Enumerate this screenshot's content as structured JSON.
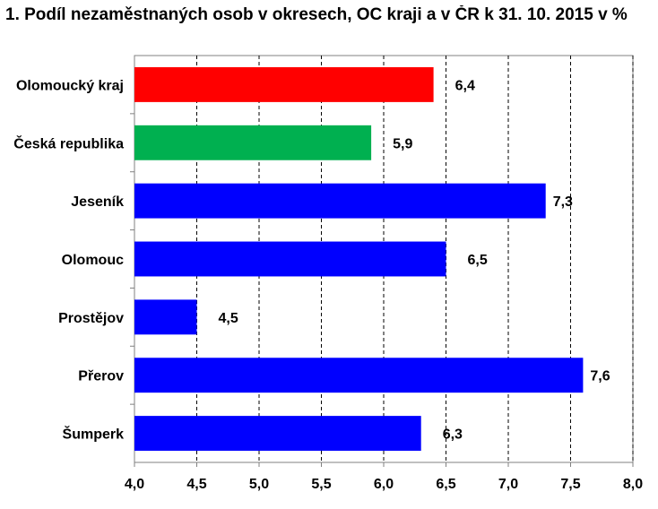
{
  "chart_data": {
    "type": "bar",
    "orientation": "horizontal",
    "title": "1.   Podíl nezaměstnaných osob v okresech, OC kraji a v ČR k 31. 10. 2015 v %",
    "categories": [
      "Olomoucký kraj",
      "Česká republika",
      "Jeseník",
      "Olomouc",
      "Prostějov",
      "Přerov",
      "Šumperk"
    ],
    "values": [
      6.4,
      5.9,
      7.3,
      6.5,
      4.5,
      7.6,
      6.3
    ],
    "value_labels": [
      "6,4",
      "5,9",
      "7,3",
      "6,5",
      "4,5",
      "7,6",
      "6,3"
    ],
    "bar_colors": [
      "#ff0000",
      "#00b050",
      "#0000ff",
      "#0000ff",
      "#0000ff",
      "#0000ff",
      "#0000ff"
    ],
    "xlim": [
      4.0,
      8.0
    ],
    "xticks": [
      4.0,
      4.5,
      5.0,
      5.5,
      6.0,
      6.5,
      7.0,
      7.5,
      8.0
    ],
    "xtick_labels": [
      "4,0",
      "4,5",
      "5,0",
      "5,5",
      "6,0",
      "6,5",
      "7,0",
      "7,5",
      "8,0"
    ],
    "grid": "vertical dashed",
    "legend": "none"
  }
}
